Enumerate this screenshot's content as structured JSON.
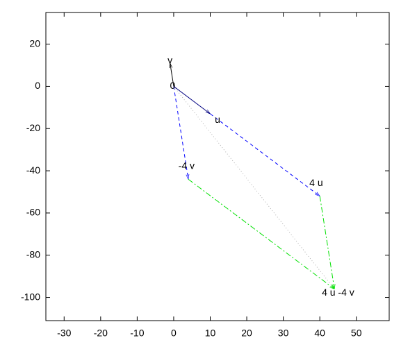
{
  "chart_data": {
    "type": "vector",
    "xlim": [
      -35,
      59
    ],
    "ylim": [
      -111,
      35
    ],
    "xticks": [
      -30,
      -20,
      -10,
      0,
      10,
      20,
      30,
      40,
      50
    ],
    "yticks": [
      -100,
      -80,
      -60,
      -40,
      -20,
      0,
      20
    ],
    "vectors": [
      {
        "x0": 0,
        "y0": 0,
        "x1": 44,
        "y1": -96,
        "color": "#b0b0b0",
        "style": "dotted",
        "head": false
      },
      {
        "x0": 0,
        "y0": 0,
        "x1": 4,
        "y1": -44,
        "color": "#0000ff",
        "style": "dashed",
        "head": true
      },
      {
        "x0": 10,
        "y0": -13,
        "x1": 40,
        "y1": -52,
        "color": "#0000ff",
        "style": "dashed",
        "head": true
      },
      {
        "x0": 4,
        "y0": -44,
        "x1": 44,
        "y1": -96,
        "color": "#00e000",
        "style": "dashdot",
        "head": true
      },
      {
        "x0": 40,
        "y0": -52,
        "x1": 44,
        "y1": -96,
        "color": "#00e000",
        "style": "dashdot",
        "head": true
      },
      {
        "x0": 0,
        "y0": 0,
        "x1": -1,
        "y1": 11,
        "color": "#000000",
        "style": "solid",
        "head": true
      },
      {
        "x0": 0,
        "y0": 0,
        "x1": 10,
        "y1": -13,
        "color": "#000080",
        "style": "solid",
        "head": true
      }
    ],
    "labels": [
      {
        "text": "0",
        "x": -0.3,
        "y": 0
      },
      {
        "text": "v",
        "x": -1,
        "y": 12
      },
      {
        "text": "u",
        "x": 12,
        "y": -16
      },
      {
        "text": "-4 v",
        "x": 3.5,
        "y": -38
      },
      {
        "text": "4 u",
        "x": 39,
        "y": -46
      },
      {
        "text": "4 u -4 v",
        "x": 45,
        "y": -98
      }
    ]
  }
}
